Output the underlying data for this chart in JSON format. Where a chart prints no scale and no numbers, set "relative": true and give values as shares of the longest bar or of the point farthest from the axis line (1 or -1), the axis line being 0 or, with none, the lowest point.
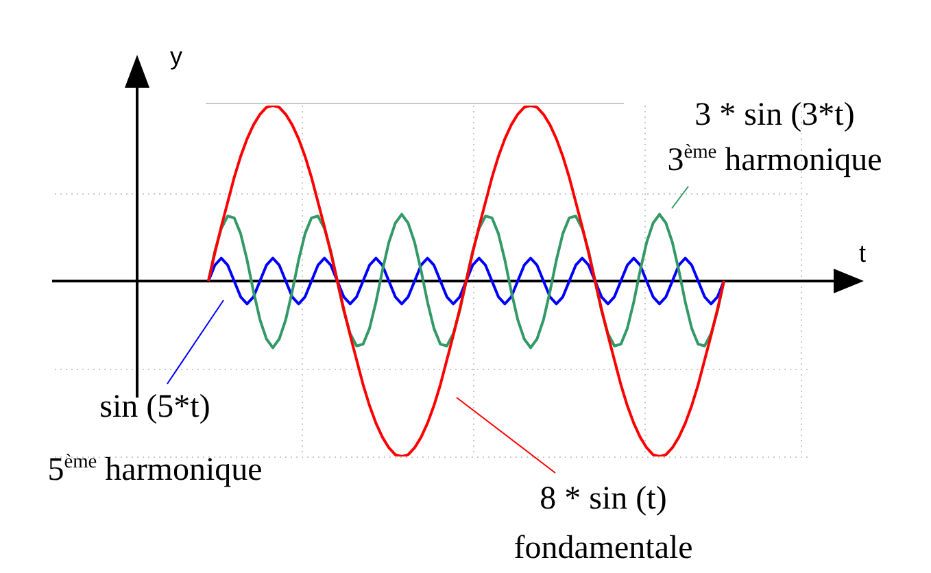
{
  "chart_data": {
    "type": "line",
    "relative": true,
    "ylabel": "y",
    "grid": true,
    "legend": false,
    "marker": "none",
    "line_style": "solid",
    "categories": [
      null,
      null,
      null,
      null,
      null,
      null,
      null,
      null,
      null,
      null,
      null,
      null,
      null,
      null,
      null,
      null,
      null,
      null,
      null,
      null,
      null,
      null,
      null,
      null,
      null,
      null,
      null,
      null,
      null,
      null,
      null,
      null,
      null,
      null,
      null,
      null,
      null,
      null,
      null,
      null,
      null,
      null,
      null,
      null,
      null,
      null,
      null,
      null,
      null,
      null,
      null,
      null,
      null,
      null,
      null,
      null,
      null,
      null,
      null,
      null,
      null,
      null,
      null,
      null,
      null,
      null,
      null,
      null,
      null,
      null,
      null,
      null,
      null,
      null,
      null,
      null,
      null,
      null,
      null,
      null,
      null
    ],
    "series": [
      {
        "name": "8 * sin (t)",
        "color": "#ff0000",
        "values": [
          0,
          0.16,
          0.31,
          0.45,
          0.59,
          0.71,
          0.81,
          0.89,
          0.95,
          0.99,
          1,
          0.99,
          0.95,
          0.89,
          0.81,
          0.71,
          0.59,
          0.45,
          0.31,
          0.16,
          0,
          -0.16,
          -0.31,
          -0.45,
          -0.59,
          -0.71,
          -0.81,
          -0.89,
          -0.95,
          -0.99,
          -1,
          -0.99,
          -0.95,
          -0.89,
          -0.81,
          -0.71,
          -0.59,
          -0.45,
          -0.31,
          -0.16,
          0,
          0.16,
          0.31,
          0.45,
          0.59,
          0.71,
          0.81,
          0.89,
          0.95,
          0.99,
          1,
          0.99,
          0.95,
          0.89,
          0.81,
          0.71,
          0.59,
          0.45,
          0.31,
          0.16,
          0,
          -0.16,
          -0.31,
          -0.45,
          -0.59,
          -0.71,
          -0.81,
          -0.89,
          -0.95,
          -0.99,
          -1,
          -0.99,
          -0.95,
          -0.89,
          -0.81,
          -0.71,
          -0.59,
          -0.45,
          -0.31,
          -0.16,
          0
        ]
      },
      {
        "name": "3 * sin (3*t)",
        "color": "#339966",
        "values": [
          0,
          0.17,
          0.3,
          0.37,
          0.36,
          0.27,
          0.12,
          -0.06,
          -0.22,
          -0.33,
          -0.38,
          -0.33,
          -0.22,
          -0.06,
          0.12,
          0.27,
          0.36,
          0.37,
          0.3,
          0.17,
          0,
          -0.17,
          -0.3,
          -0.37,
          -0.36,
          -0.27,
          -0.12,
          0.06,
          0.22,
          0.33,
          0.38,
          0.33,
          0.22,
          0.06,
          -0.12,
          -0.27,
          -0.36,
          -0.37,
          -0.3,
          -0.17,
          0,
          0.17,
          0.3,
          0.37,
          0.36,
          0.27,
          0.12,
          -0.06,
          -0.22,
          -0.33,
          -0.38,
          -0.33,
          -0.22,
          -0.06,
          0.12,
          0.27,
          0.36,
          0.37,
          0.3,
          0.17,
          0,
          -0.17,
          -0.3,
          -0.37,
          -0.36,
          -0.27,
          -0.12,
          0.06,
          0.22,
          0.33,
          0.38,
          0.33,
          0.22,
          0.06,
          -0.12,
          -0.27,
          -0.36,
          -0.37,
          -0.3,
          -0.17,
          0
        ]
      },
      {
        "name": "sin (5*t)",
        "color": "#0000ff",
        "values": [
          0,
          0.09,
          0.13,
          0.09,
          0,
          -0.09,
          -0.13,
          -0.09,
          0,
          0.09,
          0.13,
          0.09,
          0,
          -0.09,
          -0.13,
          -0.09,
          0,
          0.09,
          0.13,
          0.09,
          0,
          -0.09,
          -0.13,
          -0.09,
          0,
          0.09,
          0.13,
          0.09,
          0,
          -0.09,
          -0.13,
          -0.09,
          0,
          0.09,
          0.13,
          0.09,
          0,
          -0.09,
          -0.13,
          -0.09,
          0,
          0.09,
          0.13,
          0.09,
          0,
          -0.09,
          -0.13,
          -0.09,
          0,
          0.09,
          0.13,
          0.09,
          0,
          -0.09,
          -0.13,
          -0.09,
          0,
          0.09,
          0.13,
          0.09,
          0,
          -0.09,
          -0.13,
          -0.09,
          0,
          0.09,
          0.13,
          0.09,
          0,
          -0.09,
          -0.13,
          -0.09,
          0,
          0.09,
          0.13,
          0.09,
          0,
          -0.09,
          -0.13,
          -0.09,
          0
        ]
      }
    ],
    "annotations": [
      "fondamentale",
      "3$^{ème}$ harmonique",
      "5$^{ème}$ harmonique",
      "t"
    ]
  }
}
